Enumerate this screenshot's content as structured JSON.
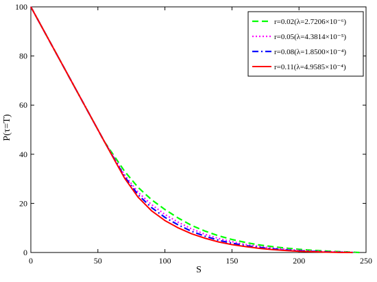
{
  "chart_data": {
    "type": "line",
    "title": "",
    "xlabel": "S",
    "ylabel": "P(τ=T)",
    "xlim": [
      0,
      250
    ],
    "ylim": [
      0,
      100
    ],
    "xticks": [
      0,
      50,
      100,
      150,
      200,
      250
    ],
    "yticks": [
      0,
      20,
      40,
      60,
      80,
      100
    ],
    "grid": false,
    "legend_position": "top-right",
    "series": [
      {
        "name": "r=0.02(λ=2.7206×10⁻⁶)",
        "color": "#00ff00",
        "style": "dashed",
        "x": [
          0,
          20,
          40,
          55,
          60,
          70,
          80,
          90,
          100,
          110,
          120,
          130,
          140,
          150,
          160,
          170,
          180,
          190,
          200,
          210,
          220,
          230,
          240,
          245
        ],
        "y": [
          100,
          80,
          60,
          45,
          41,
          33,
          26.5,
          21.5,
          17.5,
          14,
          11,
          8.7,
          6.8,
          5.3,
          4.1,
          3.1,
          2.4,
          1.8,
          1.3,
          0.9,
          0.6,
          0.35,
          0.15,
          0
        ]
      },
      {
        "name": "r=0.05(λ=4.3814×10⁻⁵)",
        "color": "#ff00ff",
        "style": "dotted",
        "x": [
          0,
          20,
          40,
          55,
          60,
          70,
          80,
          90,
          100,
          110,
          120,
          130,
          140,
          150,
          160,
          170,
          180,
          190,
          200,
          210,
          220,
          230,
          240,
          242
        ],
        "y": [
          100,
          80,
          60,
          45,
          40.5,
          31.5,
          24.5,
          19.5,
          15.5,
          12.3,
          9.6,
          7.4,
          5.7,
          4.4,
          3.3,
          2.5,
          1.8,
          1.3,
          0.9,
          0.6,
          0.35,
          0.2,
          0.05,
          0
        ]
      },
      {
        "name": "r=0.08(λ=1.8500×10⁻⁴)",
        "color": "#0000ff",
        "style": "dashdot",
        "x": [
          0,
          20,
          40,
          55,
          60,
          70,
          80,
          90,
          100,
          110,
          120,
          130,
          140,
          150,
          160,
          170,
          180,
          190,
          200,
          210,
          220,
          230,
          240
        ],
        "y": [
          100,
          80,
          60,
          45,
          40.2,
          30.8,
          23.5,
          18.3,
          14.3,
          11.2,
          8.6,
          6.6,
          5,
          3.8,
          2.8,
          2.1,
          1.5,
          1.05,
          0.7,
          0.45,
          0.25,
          0.1,
          0
        ]
      },
      {
        "name": "r=0.11(λ=4.9585×10⁻⁴)",
        "color": "#ff0000",
        "style": "solid",
        "x": [
          0,
          20,
          40,
          55,
          60,
          70,
          80,
          90,
          100,
          110,
          120,
          130,
          140,
          150,
          160,
          170,
          180,
          190,
          200,
          210,
          220,
          230,
          240
        ],
        "y": [
          100,
          80,
          60,
          45,
          40,
          30.2,
          22.5,
          17,
          13,
          10,
          7.6,
          5.8,
          4.3,
          3.2,
          2.4,
          1.7,
          1.2,
          0.8,
          0.5,
          0.3,
          0.15,
          0.05,
          0
        ]
      }
    ]
  }
}
